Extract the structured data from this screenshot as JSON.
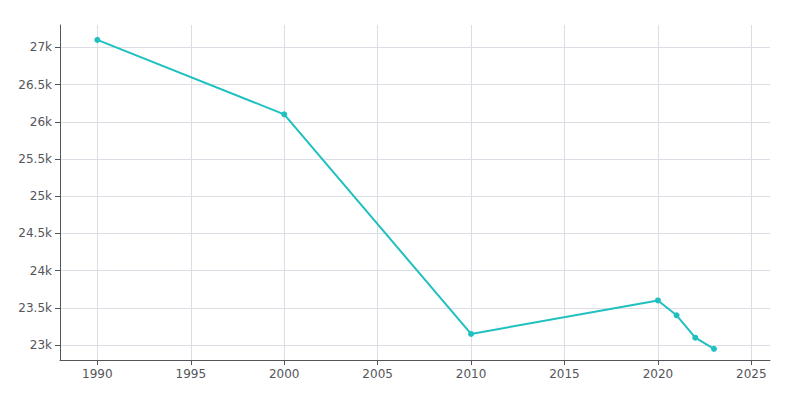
{
  "chart_data": {
    "type": "line",
    "x": [
      1990,
      2000,
      2010,
      2020,
      2021,
      2022,
      2023
    ],
    "values": [
      27100,
      26100,
      23150,
      23600,
      23400,
      23100,
      22950
    ],
    "color": "#20c0c0",
    "marker": "circle",
    "xlim": [
      1988,
      2026
    ],
    "xticks": [
      1990,
      1995,
      2000,
      2005,
      2010,
      2015,
      2020,
      2025
    ],
    "ylim": [
      22800,
      27300
    ],
    "yticks": [
      {
        "value": 23000,
        "label": "23k"
      },
      {
        "value": 23500,
        "label": "23.5k"
      },
      {
        "value": 24000,
        "label": "24k"
      },
      {
        "value": 24500,
        "label": "24.5k"
      },
      {
        "value": 25000,
        "label": "25k"
      },
      {
        "value": 25500,
        "label": "25.5k"
      },
      {
        "value": 26000,
        "label": "26k"
      },
      {
        "value": 26500,
        "label": "26.5k"
      },
      {
        "value": 27000,
        "label": "27k"
      }
    ],
    "grid": true
  }
}
